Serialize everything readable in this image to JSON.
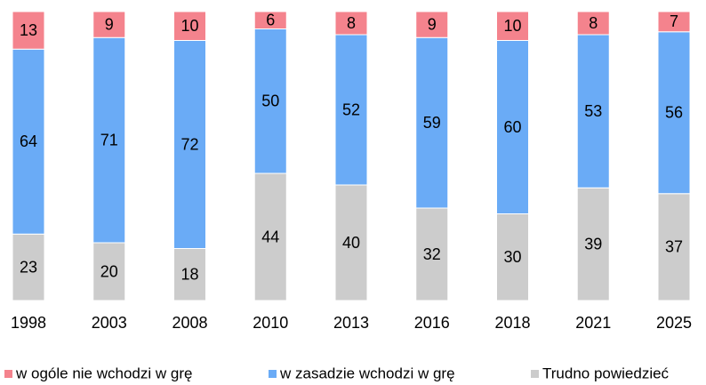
{
  "chart_data": {
    "type": "stacked_bar",
    "categories": [
      "1998",
      "2003",
      "2008",
      "2010",
      "2013",
      "2016",
      "2018",
      "2021",
      "2025"
    ],
    "series": [
      {
        "name": "w ogóle nie wchodzi w grę",
        "color": "#f4838d",
        "values": [
          13,
          9,
          10,
          6,
          8,
          9,
          10,
          8,
          7
        ]
      },
      {
        "name": "w zasadzie wchodzi w grę",
        "color": "#6aabf6",
        "values": [
          64,
          71,
          72,
          50,
          52,
          59,
          60,
          53,
          56
        ]
      },
      {
        "name": "Trudno powiedzieć",
        "color": "#cccccc",
        "values": [
          23,
          20,
          18,
          44,
          40,
          32,
          30,
          39,
          37
        ]
      }
    ],
    "stack_order": [
      2,
      1,
      0
    ],
    "ylim": [
      0,
      100
    ],
    "legend": "bottom"
  }
}
